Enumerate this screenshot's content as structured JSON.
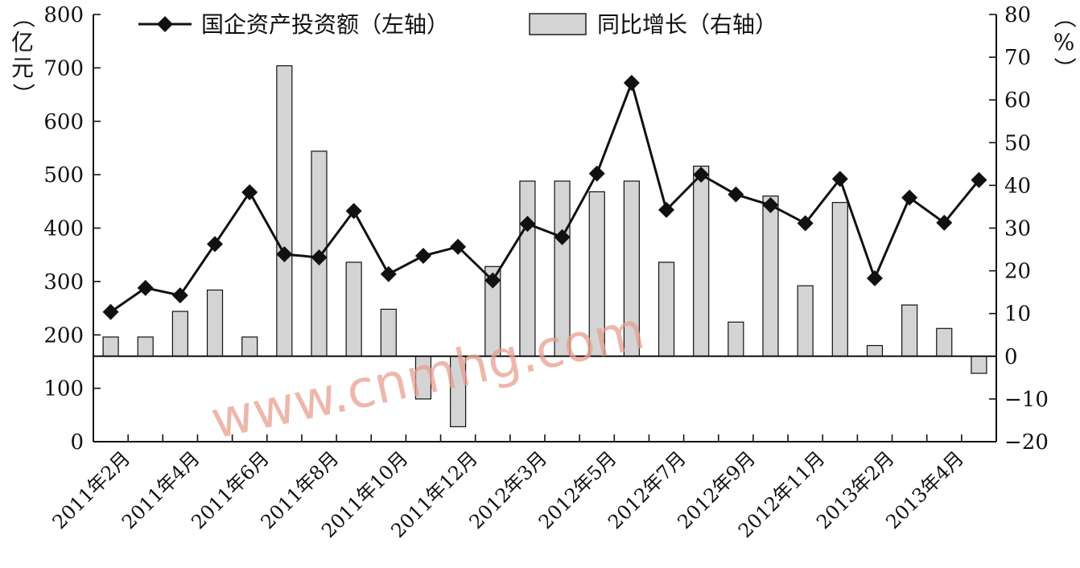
{
  "chart_data": {
    "type": "bar+line",
    "categories": [
      "2011年2月",
      "2011年3月",
      "2011年4月",
      "2011年5月",
      "2011年6月",
      "2011年7月",
      "2011年8月",
      "2011年9月",
      "2011年10月",
      "2011年11月",
      "2011年12月",
      "2012年2月",
      "2012年3月",
      "2012年4月",
      "2012年5月",
      "2012年6月",
      "2012年7月",
      "2012年8月",
      "2012年9月",
      "2012年10月",
      "2012年11月",
      "2012年12月",
      "2013年2月",
      "2013年3月",
      "2013年4月",
      "2013年5月"
    ],
    "x_tick_labels": [
      "2011年2月",
      "2011年4月",
      "2011年6月",
      "2011年8月",
      "2011年10月",
      "2011年12月",
      "2012年3月",
      "2012年5月",
      "2012年7月",
      "2012年9月",
      "2012年11月",
      "2013年2月",
      "2013年4月"
    ],
    "series": [
      {
        "name": "国企资产投资额（左轴）",
        "type": "line",
        "axis": "left",
        "values": [
          243,
          288,
          274,
          370,
          467,
          351,
          345,
          432,
          314,
          348,
          365,
          302,
          408,
          383,
          502,
          672,
          434,
          500,
          463,
          443,
          409,
          492,
          306,
          457,
          410,
          490
        ]
      },
      {
        "name": "同比增长（右轴）",
        "type": "bar",
        "axis": "right",
        "values": [
          4.5,
          4.5,
          10.5,
          15.5,
          4.5,
          68,
          48,
          22,
          11,
          -10,
          -16.5,
          21,
          41,
          41,
          38.5,
          41,
          22,
          44.5,
          8,
          37.5,
          16.5,
          36,
          2.5,
          12,
          6.5,
          -4
        ]
      }
    ],
    "left_axis": {
      "ylim": [
        0,
        800
      ],
      "ticks": [
        "0",
        "100",
        "200",
        "300",
        "400",
        "500",
        "600",
        "700",
        "800"
      ],
      "unit_label": "（亿元）"
    },
    "right_axis": {
      "ylim": [
        -20,
        80
      ],
      "ticks": [
        "-20",
        "-10",
        "0",
        "10",
        "20",
        "30",
        "40",
        "50",
        "60",
        "70",
        "80"
      ],
      "unit_label": "（%）"
    },
    "legend_placement": "top",
    "grid": false
  },
  "watermark": "www.cnmhg.com",
  "colors": {
    "bar_fill": "#d4d4d4",
    "line": "#111111",
    "axis": "#111111",
    "watermark": "#e8a090"
  }
}
